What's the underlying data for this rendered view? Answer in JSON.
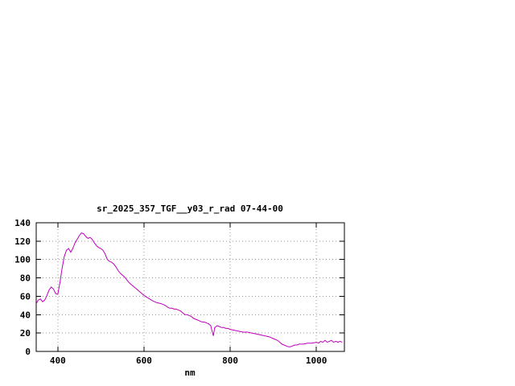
{
  "chart_data": {
    "type": "line",
    "title": "sr_2025_357_TGF__y03_r_rad 07-44-00",
    "xlabel": "nm",
    "ylabel": "",
    "xlim": [
      350,
      1065
    ],
    "ylim": [
      0,
      140
    ],
    "xticks": [
      400,
      600,
      800,
      1000
    ],
    "yticks": [
      0,
      20,
      40,
      60,
      80,
      100,
      120,
      140
    ],
    "grid": true,
    "legend": "none",
    "line_color": "#bb00bb",
    "series": [
      {
        "name": "sr_2025_357_TGF__y03_r_rad",
        "x": [
          350,
          355,
          360,
          365,
          370,
          375,
          380,
          385,
          390,
          395,
          400,
          405,
          410,
          415,
          420,
          425,
          430,
          435,
          440,
          445,
          450,
          455,
          460,
          465,
          470,
          475,
          480,
          485,
          490,
          495,
          500,
          505,
          510,
          515,
          520,
          525,
          530,
          535,
          540,
          545,
          550,
          555,
          560,
          565,
          570,
          575,
          580,
          585,
          590,
          595,
          600,
          610,
          620,
          630,
          640,
          650,
          655,
          660,
          665,
          670,
          675,
          680,
          685,
          690,
          695,
          700,
          705,
          710,
          715,
          720,
          725,
          730,
          735,
          740,
          745,
          750,
          755,
          758,
          761,
          764,
          767,
          770,
          775,
          780,
          785,
          790,
          795,
          800,
          810,
          820,
          830,
          840,
          850,
          860,
          870,
          880,
          890,
          900,
          910,
          915,
          920,
          925,
          930,
          935,
          940,
          945,
          950,
          955,
          960,
          970,
          980,
          990,
          1000,
          1005,
          1010,
          1015,
          1020,
          1025,
          1030,
          1035,
          1040,
          1045,
          1050,
          1055,
          1060
        ],
        "y": [
          52,
          56,
          57,
          54,
          56,
          61,
          67,
          70,
          68,
          63,
          62,
          75,
          90,
          103,
          110,
          112,
          108,
          112,
          118,
          122,
          126,
          129,
          128,
          125,
          123,
          124,
          122,
          118,
          115,
          113,
          112,
          110,
          106,
          100,
          98,
          97,
          95,
          92,
          88,
          85,
          83,
          81,
          78,
          75,
          73,
          71,
          69,
          67,
          65,
          63,
          61,
          58,
          55,
          53,
          52,
          50,
          48,
          47,
          47,
          46,
          46,
          45,
          44,
          42,
          40,
          40,
          39,
          38,
          36,
          35,
          34,
          33,
          32,
          32,
          31,
          30,
          28,
          22,
          17,
          26,
          27,
          28,
          27,
          26,
          26,
          25,
          25,
          24,
          23,
          22,
          21,
          21,
          20,
          19,
          18,
          17,
          16,
          14,
          12,
          10,
          8,
          7,
          6,
          5,
          5,
          6,
          7,
          7,
          8,
          8,
          9,
          9,
          10,
          9,
          11,
          10,
          12,
          10,
          11,
          12,
          10,
          11,
          10,
          11,
          10
        ]
      }
    ]
  }
}
